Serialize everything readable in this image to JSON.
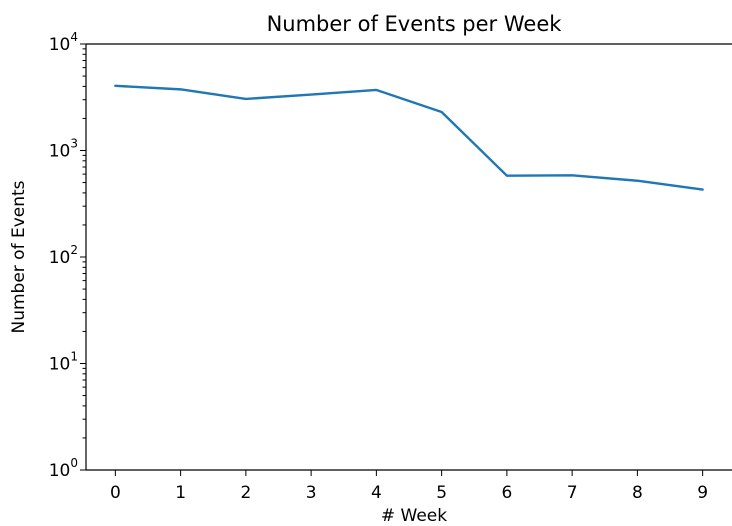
{
  "chart_data": {
    "type": "line",
    "title": "Number of Events per Week",
    "xlabel": "# Week",
    "ylabel": "Number of Events",
    "yscale": "log",
    "xlim": [
      -0.45,
      9.45
    ],
    "ylim": [
      1,
      10000
    ],
    "x": [
      0,
      1,
      2,
      3,
      4,
      5,
      6,
      7,
      8,
      9
    ],
    "xticks": [
      "0",
      "1",
      "2",
      "3",
      "4",
      "5",
      "6",
      "7",
      "8",
      "9"
    ],
    "yticks": [
      {
        "base": "10",
        "exp": "0"
      },
      {
        "base": "10",
        "exp": "1"
      },
      {
        "base": "10",
        "exp": "2"
      },
      {
        "base": "10",
        "exp": "3"
      },
      {
        "base": "10",
        "exp": "4"
      }
    ],
    "grid": false,
    "series": [
      {
        "color": "#1f77b4",
        "values": [
          4050,
          3750,
          3050,
          3350,
          3700,
          2300,
          580,
          585,
          520,
          430
        ]
      }
    ]
  }
}
